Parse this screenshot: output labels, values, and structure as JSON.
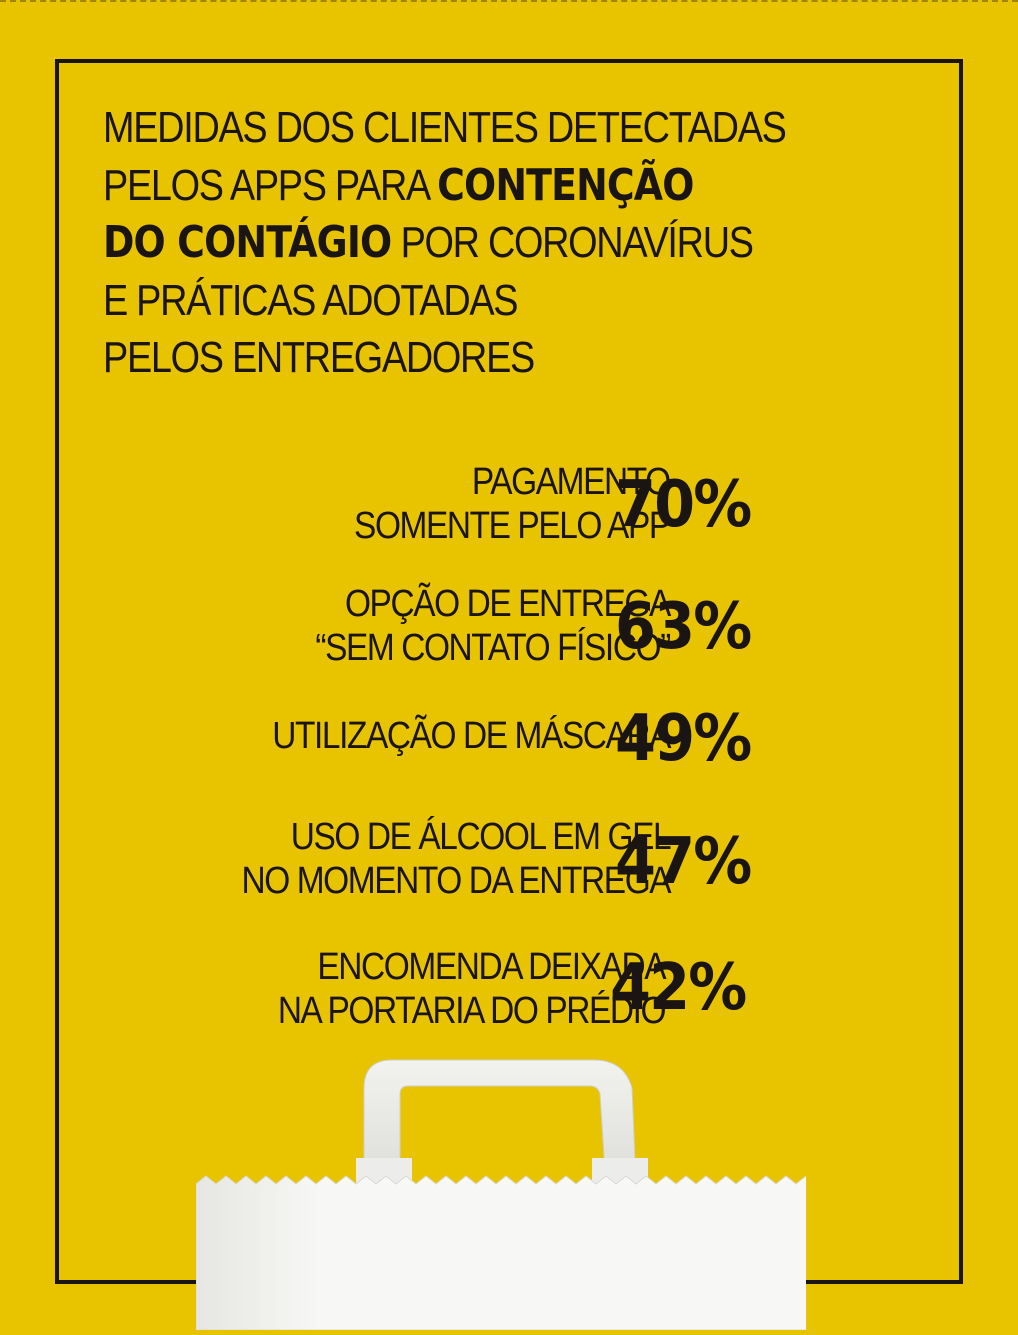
{
  "title": {
    "line1": "MEDIDAS DOS CLIENTES DETECTADAS",
    "line2_normal": "PELOS APPS PARA ",
    "line2_bold": "CONTENÇÃO",
    "line3_bold": "DO CONTÁGIO",
    "line3_normal": " POR CORONAVÍRUS",
    "line4": "E PRÁTICAS ADOTADAS",
    "line5": "PELOS ENTREGADORES"
  },
  "items": [
    {
      "line1": "PAGAMENTO",
      "line2": "SOMENTE PELO APP",
      "value": "70%"
    },
    {
      "line1": "OPÇÃO DE ENTREGA",
      "line2": "“SEM CONTATO FÍSICO”",
      "value": "63%"
    },
    {
      "line1": "UTILIZAÇÃO DE MÁSCARA",
      "line2": "",
      "value": "49%"
    },
    {
      "line1": "USO DE ÁLCOOL EM GEL",
      "line2": "NO MOMENTO DA ENTREGA",
      "value": "47%"
    },
    {
      "line1": "ENCOMENDA DEIXADA",
      "line2": "NA PORTARIA DO PRÉDIO",
      "value": "42%"
    }
  ],
  "colors": {
    "background": "#e8c300",
    "text": "#1a1512",
    "bag": "#f4f4f2"
  },
  "icons": [
    "shopping-bag-icon"
  ]
}
